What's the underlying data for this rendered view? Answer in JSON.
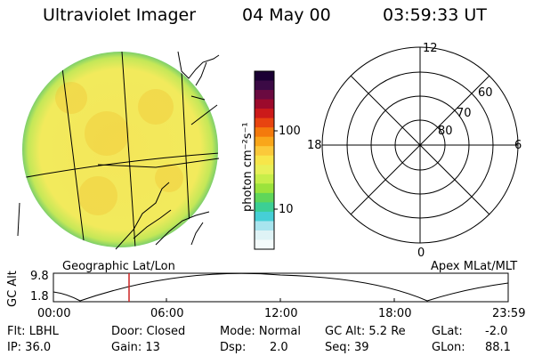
{
  "header": {
    "instrument": "Ultraviolet Imager",
    "date": "04 May 00",
    "time": "03:59:33 UT"
  },
  "colorbar": {
    "unit_label": "photon cm⁻²s⁻¹",
    "ticks": [
      {
        "value": 100,
        "label": "100"
      },
      {
        "value": 10,
        "label": "10"
      }
    ],
    "colors": [
      "#1a0033",
      "#3b0a45",
      "#6a0a40",
      "#9c0a2c",
      "#cc1a1a",
      "#e84410",
      "#f47a0c",
      "#f9a61a",
      "#fbc93a",
      "#f7e64a",
      "#e8f058",
      "#c7ee4a",
      "#9be33c",
      "#5fd65a",
      "#3ccf95",
      "#46cfd6",
      "#a8e4ee",
      "#dff3f6",
      "#f4fbfb"
    ]
  },
  "left_panel": {
    "label": "Geographic Lat/Lon"
  },
  "polar_plot": {
    "label": "Apex MLat/MLT",
    "mlt_labels": {
      "top": "12",
      "left": "18",
      "right": "6",
      "bottom": "0"
    },
    "lat_labels": [
      "60",
      "70",
      "80"
    ]
  },
  "altitude_plot": {
    "ylabel": "GC Alt",
    "ymax": "9.8",
    "ymin": "1.8",
    "xticks": [
      "00:00",
      "06:00",
      "12:00",
      "18:00",
      "23:59"
    ],
    "marker_time_hours": 3.99
  },
  "info": {
    "flt": "Flt: LBHL",
    "ip": "IP: 36.0",
    "door": "Door: Closed",
    "gain": "Gain: 13",
    "mode": "Mode: Normal",
    "dsp_label": "Dsp:",
    "dsp_value": "2.0",
    "gc_alt": "GC Alt: 5.2 Re",
    "seq": "Seq: 39",
    "glat_label": "GLat:",
    "glat_value": "-2.0",
    "glon_label": "GLon:",
    "glon_value": "88.1"
  },
  "colors": {
    "image_fill": "#f2ea5a",
    "image_edge": "#8fd46a",
    "marker": "#cc2222"
  }
}
